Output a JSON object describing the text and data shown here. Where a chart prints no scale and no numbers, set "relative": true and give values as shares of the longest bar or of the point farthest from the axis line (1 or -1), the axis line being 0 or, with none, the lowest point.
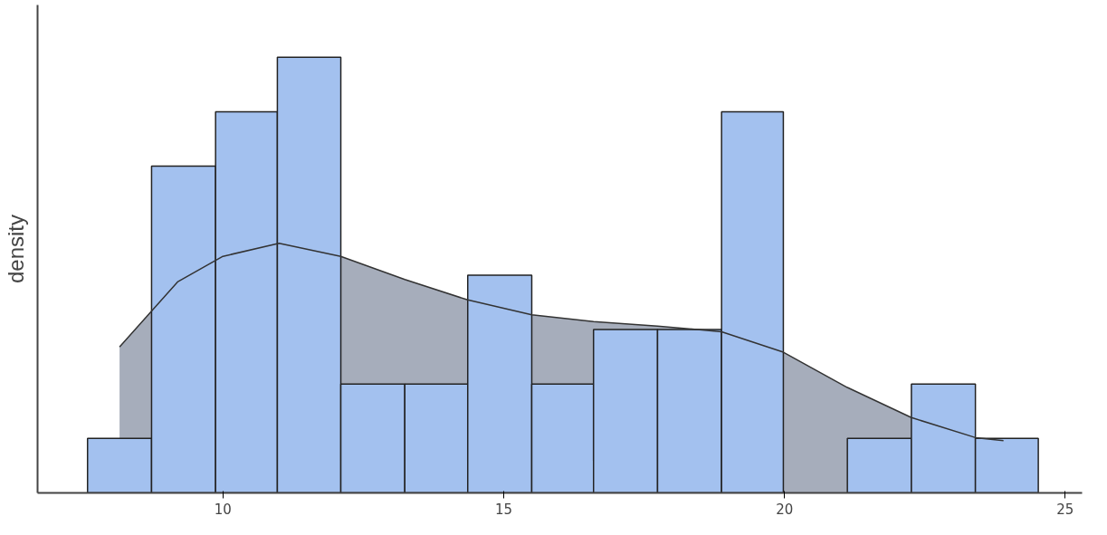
{
  "chart_data": {
    "type": "histogram",
    "ylabel": "density",
    "relative": true,
    "bins": [
      7.59,
      8.73,
      9.87,
      10.97,
      12.1,
      13.24,
      14.36,
      15.5,
      16.6,
      17.74,
      18.88,
      19.98,
      21.12,
      22.26,
      23.4,
      24.52
    ],
    "values": [
      0.125,
      0.75,
      0.875,
      1,
      0.25,
      0.25,
      0.5,
      0.25,
      0.375,
      0.375,
      0.875,
      0,
      0.125,
      0.25,
      0.125
    ],
    "color": "#a3c1ef",
    "xlim": [
      6.7,
      25.3
    ],
    "xticks": [
      10,
      15,
      20,
      25
    ],
    "grid": false,
    "series": [
      {
        "type": "area",
        "color": "#a6adbb",
        "x": [
          8.16,
          9.2,
          10,
          11.0,
          12.1,
          13.24,
          14.36,
          15.5,
          16.6,
          17.74,
          18.88,
          19.98,
          21.12,
          22.26,
          23.4,
          23.9
        ],
        "values": [
          0.335,
          0.485,
          0.543,
          0.573,
          0.543,
          0.49,
          0.443,
          0.409,
          0.393,
          0.383,
          0.37,
          0.323,
          0.242,
          0.173,
          0.127,
          0.12
        ]
      }
    ]
  }
}
